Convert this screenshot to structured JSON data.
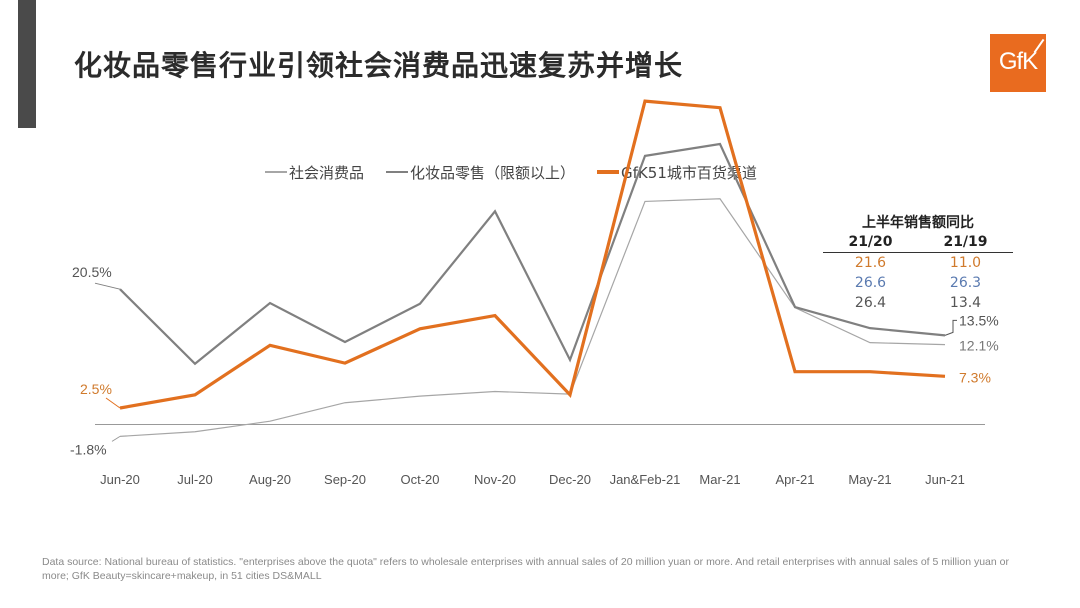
{
  "title": "化妆品零售行业引领社会消费品迅速复苏并增长",
  "logo_text": "GfK",
  "colors": {
    "social": "#a6a6a6",
    "cosmetics": "#808080",
    "gfk": "#e2701f",
    "axis": "#999999",
    "text": "#555555",
    "blue": "#5a7ab0"
  },
  "chart_data": {
    "type": "line",
    "categories": [
      "Jun-20",
      "Jul-20",
      "Aug-20",
      "Sep-20",
      "Oct-20",
      "Nov-20",
      "Dec-20",
      "Jan&Feb-21",
      "Mar-21",
      "Apr-21",
      "May-21",
      "Jun-21"
    ],
    "series": [
      {
        "name": "社会消费品",
        "key": "social",
        "values": [
          -1.8,
          -1.1,
          0.5,
          3.3,
          4.3,
          5.0,
          4.6,
          33.8,
          34.2,
          17.7,
          12.4,
          12.1
        ]
      },
      {
        "name": "化妆品零售（限额以上）",
        "key": "cosmetics",
        "values": [
          20.5,
          9.2,
          18.4,
          12.5,
          18.3,
          32.3,
          9.8,
          40.7,
          42.5,
          17.8,
          14.6,
          13.5
        ]
      },
      {
        "name": "GfK51城市百货渠道",
        "key": "gfk",
        "values": [
          2.5,
          4.5,
          12.0,
          9.3,
          14.5,
          16.5,
          4.5,
          49.0,
          48.0,
          8.0,
          8.0,
          7.3
        ]
      }
    ],
    "ylim": [
      -5,
      55
    ],
    "point_labels": {
      "social_start": "-1.8%",
      "cosmetics_start": "20.5%",
      "gfk_start": "2.5%",
      "social_end": "12.1%",
      "cosmetics_end": "13.5%",
      "gfk_end": "7.3%"
    },
    "table": {
      "title": "上半年销售额同比",
      "headers": [
        "21/20",
        "21/19"
      ],
      "rows": [
        {
          "values": [
            "21.6",
            "11.0"
          ],
          "color": "#d07a2c"
        },
        {
          "values": [
            "26.6",
            "26.3"
          ],
          "color": "#5a7ab0"
        },
        {
          "values": [
            "26.4",
            "13.4"
          ],
          "color": "#555555"
        }
      ]
    }
  },
  "footnote": "Data source: National bureau of statistics. \"enterprises above the quota\" refers to wholesale enterprises with annual sales of 20 million yuan or more. And retail enterprises with annual sales of 5 million yuan or more; GfK Beauty=skincare+makeup, in 51 cities DS&MALL"
}
